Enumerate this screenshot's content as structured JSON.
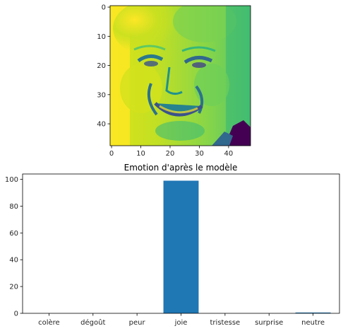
{
  "colors": {
    "bar": "#1f77b4",
    "axis": "#000000",
    "text": "#262626",
    "image_low": "#440154",
    "image_mid": "#21918c",
    "image_high": "#fde725"
  },
  "image_panel": {
    "content": "grayscale 48x48 face photo (smiling man) rendered with viridis colormap",
    "colormap": "viridis",
    "xticks": [
      "0",
      "10",
      "20",
      "30",
      "40"
    ],
    "yticks": [
      "0",
      "10",
      "20",
      "30",
      "40"
    ]
  },
  "chart_data": {
    "type": "bar",
    "title": "Emotion d'après le modèle",
    "categories": [
      "colère",
      "dégoût",
      "peur",
      "joie",
      "tristesse",
      "surprise",
      "neutre"
    ],
    "values": [
      0,
      0,
      0,
      99,
      0,
      0,
      0.6
    ],
    "ylim": [
      0,
      104
    ],
    "yticks": [
      0,
      20,
      40,
      60,
      80,
      100
    ],
    "xlabel": "",
    "ylabel": "",
    "grid": false
  }
}
